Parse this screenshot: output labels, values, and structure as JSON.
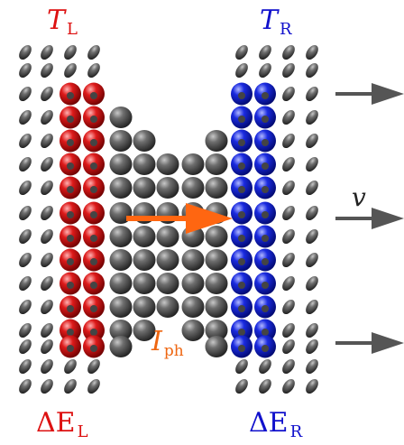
{
  "labels": {
    "temp_left": {
      "symbol": "T",
      "subscript": "L",
      "color": "#dd1111"
    },
    "temp_right": {
      "symbol": "T",
      "subscript": "R",
      "color": "#1111cc"
    },
    "energy_left": {
      "symbol": "ΔE",
      "subscript": "L",
      "color": "#dd1111"
    },
    "energy_right": {
      "symbol": "ΔE",
      "subscript": "R",
      "color": "#1111cc"
    },
    "velocity": {
      "symbol": "v",
      "color": "#222222"
    },
    "current": {
      "symbol": "I",
      "subscript": "ph",
      "color": "#ee6611"
    }
  },
  "colors": {
    "atom_gray": "#555555",
    "atom_red": "#cc1111",
    "atom_blue": "#1122cc",
    "heat_arrow": "#ff6611",
    "velocity_arrow": "#555555"
  }
}
